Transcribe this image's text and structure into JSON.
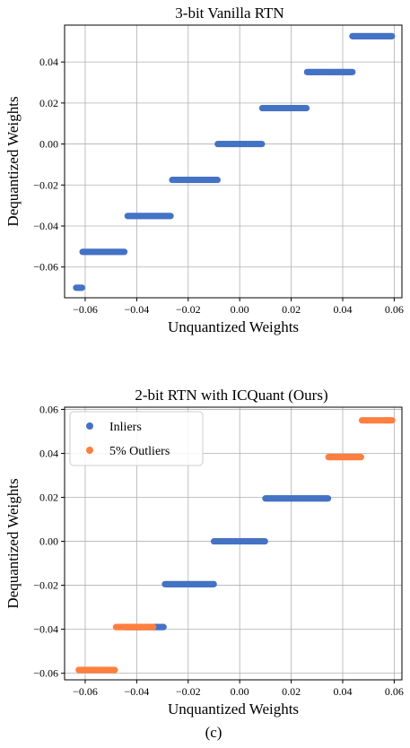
{
  "caption": "(c)",
  "colors": {
    "inliers": "#4472C4",
    "outliers": "#FF7F3F",
    "grid": "#b0b0b0"
  },
  "chart_data": [
    {
      "type": "scatter",
      "title": "3-bit Vanilla RTN",
      "xlabel": "Unquantized Weights",
      "ylabel": "Dequantized Weights",
      "xlim": [
        -0.068,
        0.063
      ],
      "ylim": [
        -0.075,
        0.058
      ],
      "xticks": [
        -0.06,
        -0.04,
        -0.02,
        0.0,
        0.02,
        0.04,
        0.06
      ],
      "yticks": [
        -0.06,
        -0.04,
        -0.02,
        0.0,
        0.02,
        0.04
      ],
      "xtick_labels": [
        "−0.06",
        "−0.04",
        "−0.02",
        "0.00",
        "0.02",
        "0.04",
        "0.06"
      ],
      "ytick_labels": [
        "−0.06",
        "−0.04",
        "−0.02",
        "0.00",
        "0.02",
        "0.04"
      ],
      "grid": true,
      "legend": null,
      "series": [
        {
          "color": "#4472C4",
          "levels": [
            {
              "y": -0.0701,
              "x_segments": [
                [
                  -0.0635,
                  -0.0612
                ]
              ]
            },
            {
              "y": -0.0526,
              "x_segments": [
                [
                  -0.061,
                  -0.0445
                ]
              ]
            },
            {
              "y": -0.0351,
              "x_segments": [
                [
                  -0.0435,
                  -0.0265
                ]
              ]
            },
            {
              "y": -0.0175,
              "x_segments": [
                [
                  -0.0262,
                  -0.0085
                ]
              ]
            },
            {
              "y": 0.0,
              "x_segments": [
                [
                  -0.0085,
                  0.0088
                ]
              ]
            },
            {
              "y": 0.0175,
              "x_segments": [
                [
                  0.0088,
                  0.0262
                ]
              ]
            },
            {
              "y": 0.0351,
              "x_segments": [
                [
                  0.0262,
                  0.0438
                ]
              ]
            },
            {
              "y": 0.0526,
              "x_segments": [
                [
                  0.0438,
                  0.0592
                ]
              ]
            }
          ]
        }
      ]
    },
    {
      "type": "scatter",
      "title": "2-bit RTN with ICQuant (Ours)",
      "xlabel": "Unquantized Weights",
      "ylabel": "Dequantized Weights",
      "xlim": [
        -0.068,
        0.063
      ],
      "ylim": [
        -0.063,
        0.061
      ],
      "xticks": [
        -0.06,
        -0.04,
        -0.02,
        0.0,
        0.02,
        0.04,
        0.06
      ],
      "yticks": [
        -0.06,
        -0.04,
        -0.02,
        0.0,
        0.02,
        0.04,
        0.06
      ],
      "xtick_labels": [
        "−0.06",
        "−0.04",
        "−0.02",
        "0.00",
        "0.02",
        "0.04",
        "0.06"
      ],
      "ytick_labels": [
        "−0.06",
        "−0.04",
        "−0.02",
        "0.00",
        "0.02",
        "0.04",
        "0.06"
      ],
      "grid": true,
      "legend": "top-left",
      "series": [
        {
          "name": "Inliers",
          "color": "#4472C4",
          "levels": [
            {
              "y": -0.039,
              "x_segments": [
                [
                  -0.044,
                  -0.0295
                ]
              ]
            },
            {
              "y": -0.0195,
              "x_segments": [
                [
                  -0.029,
                  -0.01
                ]
              ]
            },
            {
              "y": 0.0,
              "x_segments": [
                [
                  -0.01,
                  0.01
                ]
              ]
            },
            {
              "y": 0.0195,
              "x_segments": [
                [
                  0.01,
                  0.0345
                ]
              ]
            }
          ]
        },
        {
          "name": "5% Outliers",
          "color": "#FF7F3F",
          "levels": [
            {
              "y": -0.0585,
              "x_segments": [
                [
                  -0.0625,
                  -0.0485
                ]
              ]
            },
            {
              "y": -0.039,
              "x_segments": [
                [
                  -0.048,
                  -0.0335
                ]
              ]
            },
            {
              "y": 0.0383,
              "x_segments": [
                [
                  0.0345,
                  0.0475
                ]
              ]
            },
            {
              "y": 0.055,
              "x_segments": [
                [
                  0.0475,
                  0.0595
                ]
              ]
            }
          ]
        }
      ]
    }
  ]
}
